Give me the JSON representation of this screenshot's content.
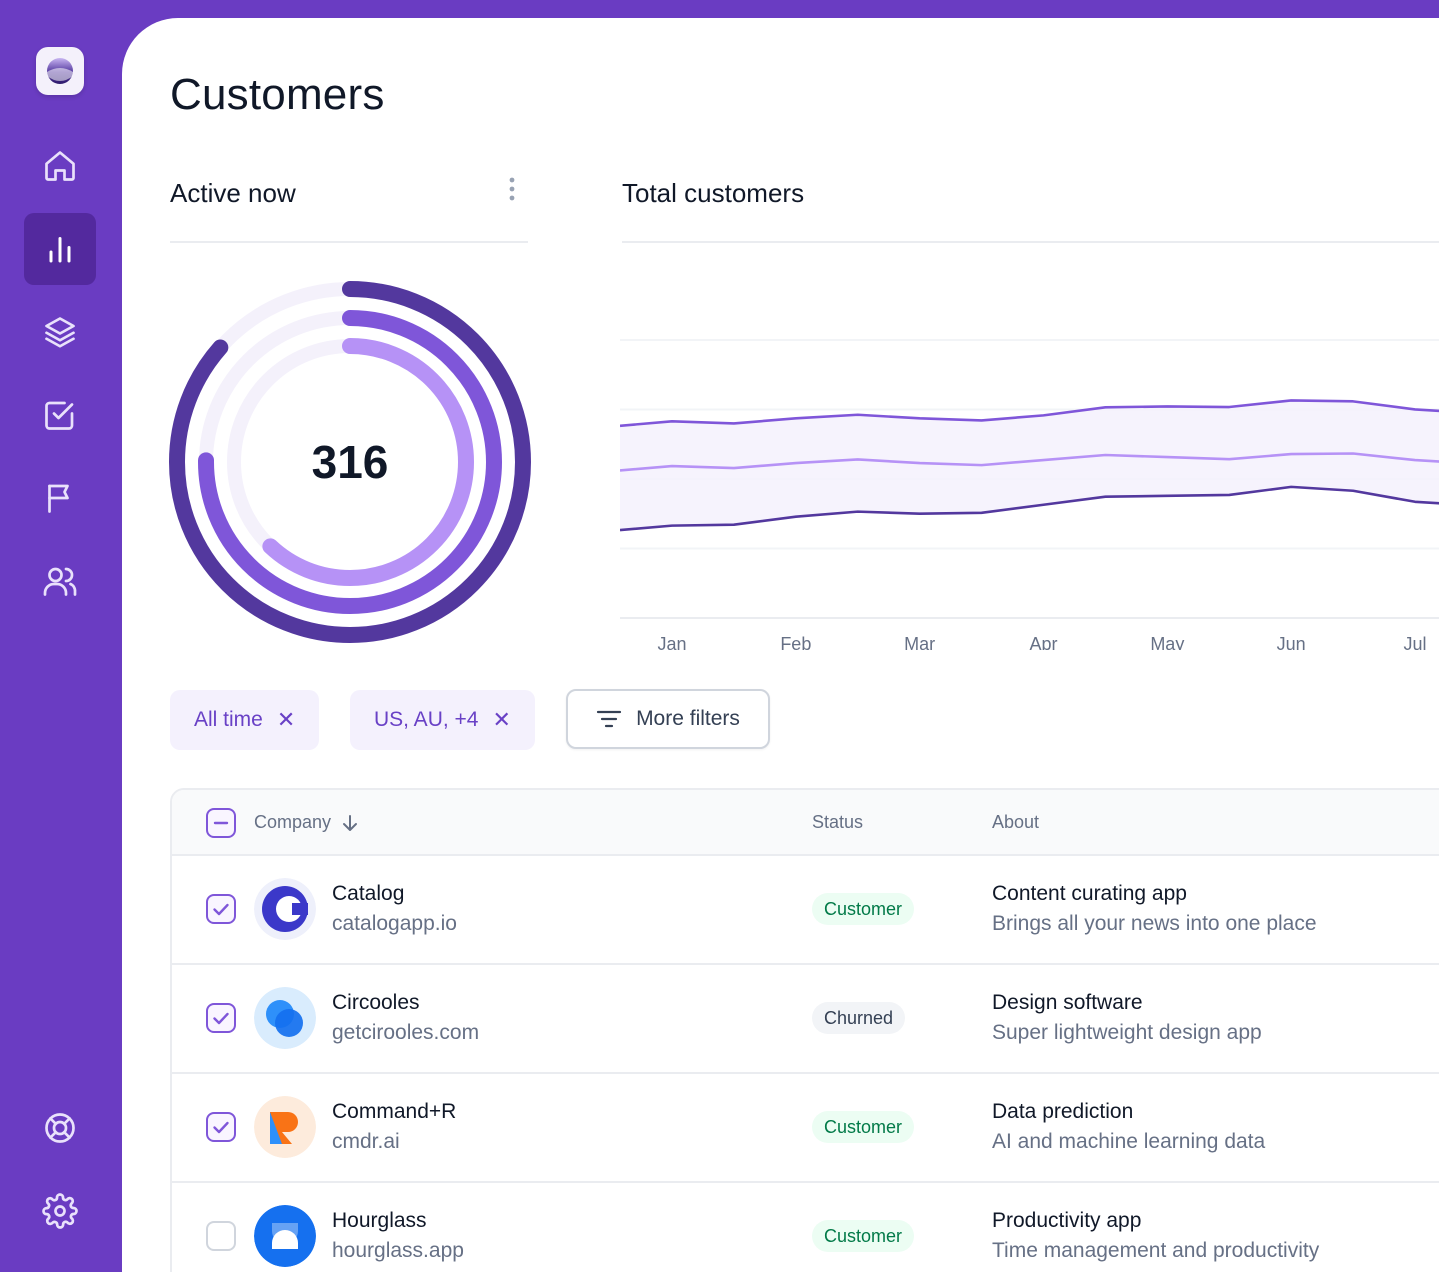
{
  "page": {
    "title": "Customers"
  },
  "sidebar": {
    "items": [
      {
        "name": "home",
        "icon": "home-icon",
        "active": false
      },
      {
        "name": "analytics",
        "icon": "bar-chart-icon",
        "active": true
      },
      {
        "name": "layers",
        "icon": "layers-icon",
        "active": false
      },
      {
        "name": "tasks",
        "icon": "check-square-icon",
        "active": false
      },
      {
        "name": "reports",
        "icon": "flag-icon",
        "active": false
      },
      {
        "name": "users",
        "icon": "users-icon",
        "active": false
      },
      {
        "name": "support",
        "icon": "life-buoy-icon",
        "active": false
      },
      {
        "name": "settings",
        "icon": "gear-icon",
        "active": false
      }
    ]
  },
  "active_card": {
    "title": "Active now",
    "value": "316"
  },
  "total_card": {
    "title": "Total customers"
  },
  "chart_data": {
    "type": "line",
    "title": "Total customers",
    "categories": [
      "Jan",
      "Feb",
      "Mar",
      "Apr",
      "May",
      "Jun",
      "Jul"
    ],
    "ylim": [
      0,
      100
    ],
    "grid": true,
    "legend": "none",
    "series": [
      {
        "values": [
          66,
          67,
          67,
          68,
          71,
          73,
          70
        ],
        "color": "#7f56d9"
      },
      {
        "values": [
          51,
          52,
          52,
          53,
          54,
          55,
          53
        ],
        "color": "#b692f6"
      },
      {
        "values": [
          31,
          34,
          35,
          38,
          41,
          44,
          39
        ],
        "color": "#53389e"
      }
    ]
  },
  "filters": {
    "chips": [
      {
        "label": "All time"
      },
      {
        "label": "US, AU, +4"
      }
    ],
    "more_label": "More filters"
  },
  "table": {
    "headers": {
      "company": "Company",
      "status": "Status",
      "about": "About"
    },
    "rows": [
      {
        "name": "Catalog",
        "url": "catalogapp.io",
        "status": "Customer",
        "about_title": "Content curating app",
        "about_sub": "Brings all your news into one place",
        "checked": true
      },
      {
        "name": "Circooles",
        "url": "getcirooles.com",
        "status": "Churned",
        "about_title": "Design software",
        "about_sub": "Super lightweight design app",
        "checked": true
      },
      {
        "name": "Command+R",
        "url": "cmdr.ai",
        "status": "Customer",
        "about_title": "Data prediction",
        "about_sub": "AI and machine learning data",
        "checked": true
      },
      {
        "name": "Hourglass",
        "url": "hourglass.app",
        "status": "Customer",
        "about_title": "Productivity app",
        "about_sub": "Time management and productivity",
        "checked": false
      }
    ]
  },
  "colors": {
    "brand": "#6a3cc2",
    "brand_dark": "#53299e",
    "ring_outer": "#53389e",
    "ring_middle": "#7f56d9",
    "ring_inner": "#b692f6"
  }
}
